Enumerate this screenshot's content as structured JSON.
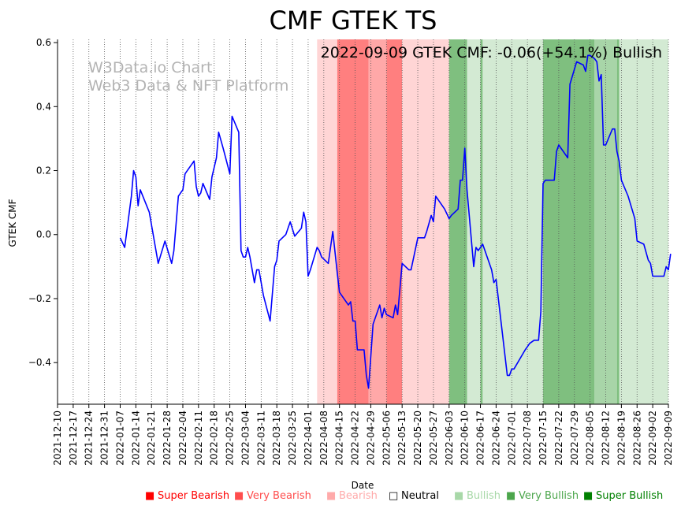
{
  "chart_data": {
    "type": "line",
    "title": "CMF GTEK TS",
    "annotation": "2022-09-09 GTEK CMF: -0.06(+54.1%) Bullish",
    "watermark": [
      "W3Data.io Chart",
      "Web3 Data & NFT Platform"
    ],
    "xlabel": "Date",
    "ylabel": "GTEK CMF",
    "xlim": [
      "2021-12-10",
      "2022-09-09"
    ],
    "ylim": [
      -0.53,
      0.61
    ],
    "yticks": [
      -0.4,
      -0.2,
      0.0,
      0.2,
      0.4,
      0.6
    ],
    "ytick_labels": [
      "−0.4",
      "−0.2",
      "0.0",
      "0.2",
      "0.4",
      "0.6"
    ],
    "xticks": [
      "2021-12-10",
      "2021-12-17",
      "2021-12-24",
      "2021-12-31",
      "2022-01-07",
      "2022-01-14",
      "2022-01-21",
      "2022-01-28",
      "2022-02-04",
      "2022-02-11",
      "2022-02-18",
      "2022-02-25",
      "2022-03-04",
      "2022-03-11",
      "2022-03-18",
      "2022-03-25",
      "2022-04-01",
      "2022-04-08",
      "2022-04-15",
      "2022-04-22",
      "2022-04-29",
      "2022-05-06",
      "2022-05-13",
      "2022-05-20",
      "2022-05-27",
      "2022-06-03",
      "2022-06-10",
      "2022-06-17",
      "2022-06-24",
      "2022-07-01",
      "2022-07-08",
      "2022-07-15",
      "2022-07-22",
      "2022-07-29",
      "2022-08-05",
      "2022-08-12",
      "2022-08-19",
      "2022-08-26",
      "2022-09-02",
      "2022-09-09"
    ],
    "series": [
      {
        "name": "GTEK CMF",
        "color": "#0000ff",
        "points": [
          [
            "2022-01-07",
            -0.01
          ],
          [
            "2022-01-09",
            -0.04
          ],
          [
            "2022-01-12",
            0.12
          ],
          [
            "2022-01-13",
            0.2
          ],
          [
            "2022-01-14",
            0.18
          ],
          [
            "2022-01-15",
            0.09
          ],
          [
            "2022-01-16",
            0.14
          ],
          [
            "2022-01-20",
            0.07
          ],
          [
            "2022-01-24",
            -0.09
          ],
          [
            "2022-01-27",
            -0.02
          ],
          [
            "2022-01-30",
            -0.09
          ],
          [
            "2022-01-31",
            -0.05
          ],
          [
            "2022-02-02",
            0.12
          ],
          [
            "2022-02-03",
            0.13
          ],
          [
            "2022-02-04",
            0.14
          ],
          [
            "2022-02-05",
            0.19
          ],
          [
            "2022-02-09",
            0.23
          ],
          [
            "2022-02-10",
            0.15
          ],
          [
            "2022-02-11",
            0.12
          ],
          [
            "2022-02-12",
            0.13
          ],
          [
            "2022-02-13",
            0.16
          ],
          [
            "2022-02-16",
            0.11
          ],
          [
            "2022-02-17",
            0.18
          ],
          [
            "2022-02-19",
            0.24
          ],
          [
            "2022-02-20",
            0.32
          ],
          [
            "2022-02-22",
            0.27
          ],
          [
            "2022-02-25",
            0.19
          ],
          [
            "2022-02-26",
            0.37
          ],
          [
            "2022-03-01",
            0.32
          ],
          [
            "2022-03-02",
            -0.05
          ],
          [
            "2022-03-03",
            -0.07
          ],
          [
            "2022-03-04",
            -0.07
          ],
          [
            "2022-03-05",
            -0.04
          ],
          [
            "2022-03-06",
            -0.07
          ],
          [
            "2022-03-08",
            -0.15
          ],
          [
            "2022-03-09",
            -0.11
          ],
          [
            "2022-03-10",
            -0.11
          ],
          [
            "2022-03-12",
            -0.19
          ],
          [
            "2022-03-15",
            -0.27
          ],
          [
            "2022-03-17",
            -0.1
          ],
          [
            "2022-03-18",
            -0.08
          ],
          [
            "2022-03-19",
            -0.02
          ],
          [
            "2022-03-22",
            0.0
          ],
          [
            "2022-03-24",
            0.04
          ],
          [
            "2022-03-26",
            -0.005
          ],
          [
            "2022-03-29",
            0.02
          ],
          [
            "2022-03-30",
            0.07
          ],
          [
            "2022-03-31",
            0.04
          ],
          [
            "2022-04-01",
            -0.13
          ],
          [
            "2022-04-02",
            -0.11
          ],
          [
            "2022-04-05",
            -0.04
          ],
          [
            "2022-04-06",
            -0.05
          ],
          [
            "2022-04-07",
            -0.07
          ],
          [
            "2022-04-10",
            -0.09
          ],
          [
            "2022-04-12",
            0.01
          ],
          [
            "2022-04-14",
            -0.12
          ],
          [
            "2022-04-15",
            -0.18
          ],
          [
            "2022-04-19",
            -0.22
          ],
          [
            "2022-04-20",
            -0.21
          ],
          [
            "2022-04-21",
            -0.27
          ],
          [
            "2022-04-22",
            -0.27
          ],
          [
            "2022-04-23",
            -0.36
          ],
          [
            "2022-04-26",
            -0.36
          ],
          [
            "2022-04-27",
            -0.44
          ],
          [
            "2022-04-28",
            -0.48
          ],
          [
            "2022-04-30",
            -0.28
          ],
          [
            "2022-05-03",
            -0.22
          ],
          [
            "2022-05-04",
            -0.26
          ],
          [
            "2022-05-05",
            -0.23
          ],
          [
            "2022-05-06",
            -0.25
          ],
          [
            "2022-05-09",
            -0.26
          ],
          [
            "2022-05-10",
            -0.22
          ],
          [
            "2022-05-11",
            -0.25
          ],
          [
            "2022-05-13",
            -0.09
          ],
          [
            "2022-05-16",
            -0.11
          ],
          [
            "2022-05-17",
            -0.11
          ],
          [
            "2022-05-20",
            -0.01
          ],
          [
            "2022-05-23",
            -0.01
          ],
          [
            "2022-05-24",
            0.01
          ],
          [
            "2022-05-26",
            0.06
          ],
          [
            "2022-05-27",
            0.04
          ],
          [
            "2022-05-28",
            0.12
          ],
          [
            "2022-06-01",
            0.08
          ],
          [
            "2022-06-03",
            0.05
          ],
          [
            "2022-06-04",
            0.06
          ],
          [
            "2022-06-07",
            0.08
          ],
          [
            "2022-06-08",
            0.17
          ],
          [
            "2022-06-09",
            0.17
          ],
          [
            "2022-06-10",
            0.27
          ],
          [
            "2022-06-11",
            0.14
          ],
          [
            "2022-06-14",
            -0.1
          ],
          [
            "2022-06-15",
            -0.04
          ],
          [
            "2022-06-16",
            -0.05
          ],
          [
            "2022-06-18",
            -0.03
          ],
          [
            "2022-06-22",
            -0.11
          ],
          [
            "2022-06-23",
            -0.15
          ],
          [
            "2022-06-24",
            -0.14
          ],
          [
            "2022-06-29",
            -0.44
          ],
          [
            "2022-06-30",
            -0.44
          ],
          [
            "2022-07-01",
            -0.42
          ],
          [
            "2022-07-02",
            -0.42
          ],
          [
            "2022-07-07",
            -0.36
          ],
          [
            "2022-07-08",
            -0.35
          ],
          [
            "2022-07-09",
            -0.34
          ],
          [
            "2022-07-11",
            -0.33
          ],
          [
            "2022-07-13",
            -0.33
          ],
          [
            "2022-07-14",
            -0.24
          ],
          [
            "2022-07-15",
            0.16
          ],
          [
            "2022-07-16",
            0.17
          ],
          [
            "2022-07-20",
            0.17
          ],
          [
            "2022-07-21",
            0.26
          ],
          [
            "2022-07-22",
            0.28
          ],
          [
            "2022-07-26",
            0.24
          ],
          [
            "2022-07-27",
            0.47
          ],
          [
            "2022-07-30",
            0.54
          ],
          [
            "2022-08-02",
            0.53
          ],
          [
            "2022-08-03",
            0.51
          ],
          [
            "2022-08-04",
            0.56
          ],
          [
            "2022-08-05",
            0.56
          ],
          [
            "2022-08-07",
            0.55
          ],
          [
            "2022-08-08",
            0.54
          ],
          [
            "2022-08-09",
            0.48
          ],
          [
            "2022-08-10",
            0.5
          ],
          [
            "2022-08-11",
            0.28
          ],
          [
            "2022-08-12",
            0.28
          ],
          [
            "2022-08-15",
            0.33
          ],
          [
            "2022-08-16",
            0.33
          ],
          [
            "2022-08-17",
            0.26
          ],
          [
            "2022-08-18",
            0.23
          ],
          [
            "2022-08-19",
            0.17
          ],
          [
            "2022-08-22",
            0.12
          ],
          [
            "2022-08-25",
            0.05
          ],
          [
            "2022-08-26",
            -0.02
          ],
          [
            "2022-08-29",
            -0.03
          ],
          [
            "2022-08-31",
            -0.08
          ],
          [
            "2022-09-01",
            -0.09
          ],
          [
            "2022-09-02",
            -0.13
          ],
          [
            "2022-09-07",
            -0.13
          ],
          [
            "2022-09-08",
            -0.1
          ],
          [
            "2022-09-09",
            -0.11
          ],
          [
            "2022-09-10",
            -0.06
          ]
        ]
      }
    ],
    "bands": [
      {
        "start": "2022-04-05",
        "end": "2022-04-14",
        "level": "Bearish"
      },
      {
        "start": "2022-04-14",
        "end": "2022-04-28",
        "level": "Super Bearish"
      },
      {
        "start": "2022-04-28",
        "end": "2022-05-06",
        "level": "Very Bearish"
      },
      {
        "start": "2022-05-06",
        "end": "2022-05-13",
        "level": "Super Bearish"
      },
      {
        "start": "2022-05-13",
        "end": "2022-06-03",
        "level": "Bearish"
      },
      {
        "start": "2022-06-03",
        "end": "2022-06-11",
        "level": "Super Bullish"
      },
      {
        "start": "2022-06-11",
        "end": "2022-06-17",
        "level": "Bullish"
      },
      {
        "start": "2022-06-17",
        "end": "2022-06-18",
        "level": "Super Bullish"
      },
      {
        "start": "2022-06-18",
        "end": "2022-07-15",
        "level": "Bullish"
      },
      {
        "start": "2022-07-15",
        "end": "2022-08-07",
        "level": "Super Bullish"
      },
      {
        "start": "2022-08-07",
        "end": "2022-08-17",
        "level": "Very Bullish"
      },
      {
        "start": "2022-08-17",
        "end": "2022-08-18",
        "level": "Super Bullish"
      },
      {
        "start": "2022-08-18",
        "end": "2022-09-10",
        "level": "Bullish"
      }
    ],
    "legend": [
      {
        "label": "Super Bearish",
        "color": "#ff0000",
        "text_color": "#ff0000",
        "marker": "■"
      },
      {
        "label": "Very Bearish",
        "color": "#ff4d4d",
        "text_color": "#ff4d4d",
        "marker": "■"
      },
      {
        "label": "Bearish",
        "color": "#ffaaaa",
        "text_color": "#ffaaaa",
        "marker": "■"
      },
      {
        "label": "Neutral",
        "color": "#ffffff",
        "text_color": "#000000",
        "marker": "□"
      },
      {
        "label": "Bullish",
        "color": "#a8d8a8",
        "text_color": "#a8d8a8",
        "marker": "■"
      },
      {
        "label": "Very Bullish",
        "color": "#4ca64c",
        "text_color": "#4ca64c",
        "marker": "■"
      },
      {
        "label": "Super Bullish",
        "color": "#008000",
        "text_color": "#008000",
        "marker": "■"
      }
    ],
    "band_colors": {
      "Super Bearish": "#ff7f7f",
      "Very Bearish": "#ffa8a8",
      "Bearish": "#ffd5d5",
      "Bullish": "#d3ead3",
      "Very Bullish": "#a8d5a8",
      "Super Bullish": "#7fbf7f"
    }
  }
}
